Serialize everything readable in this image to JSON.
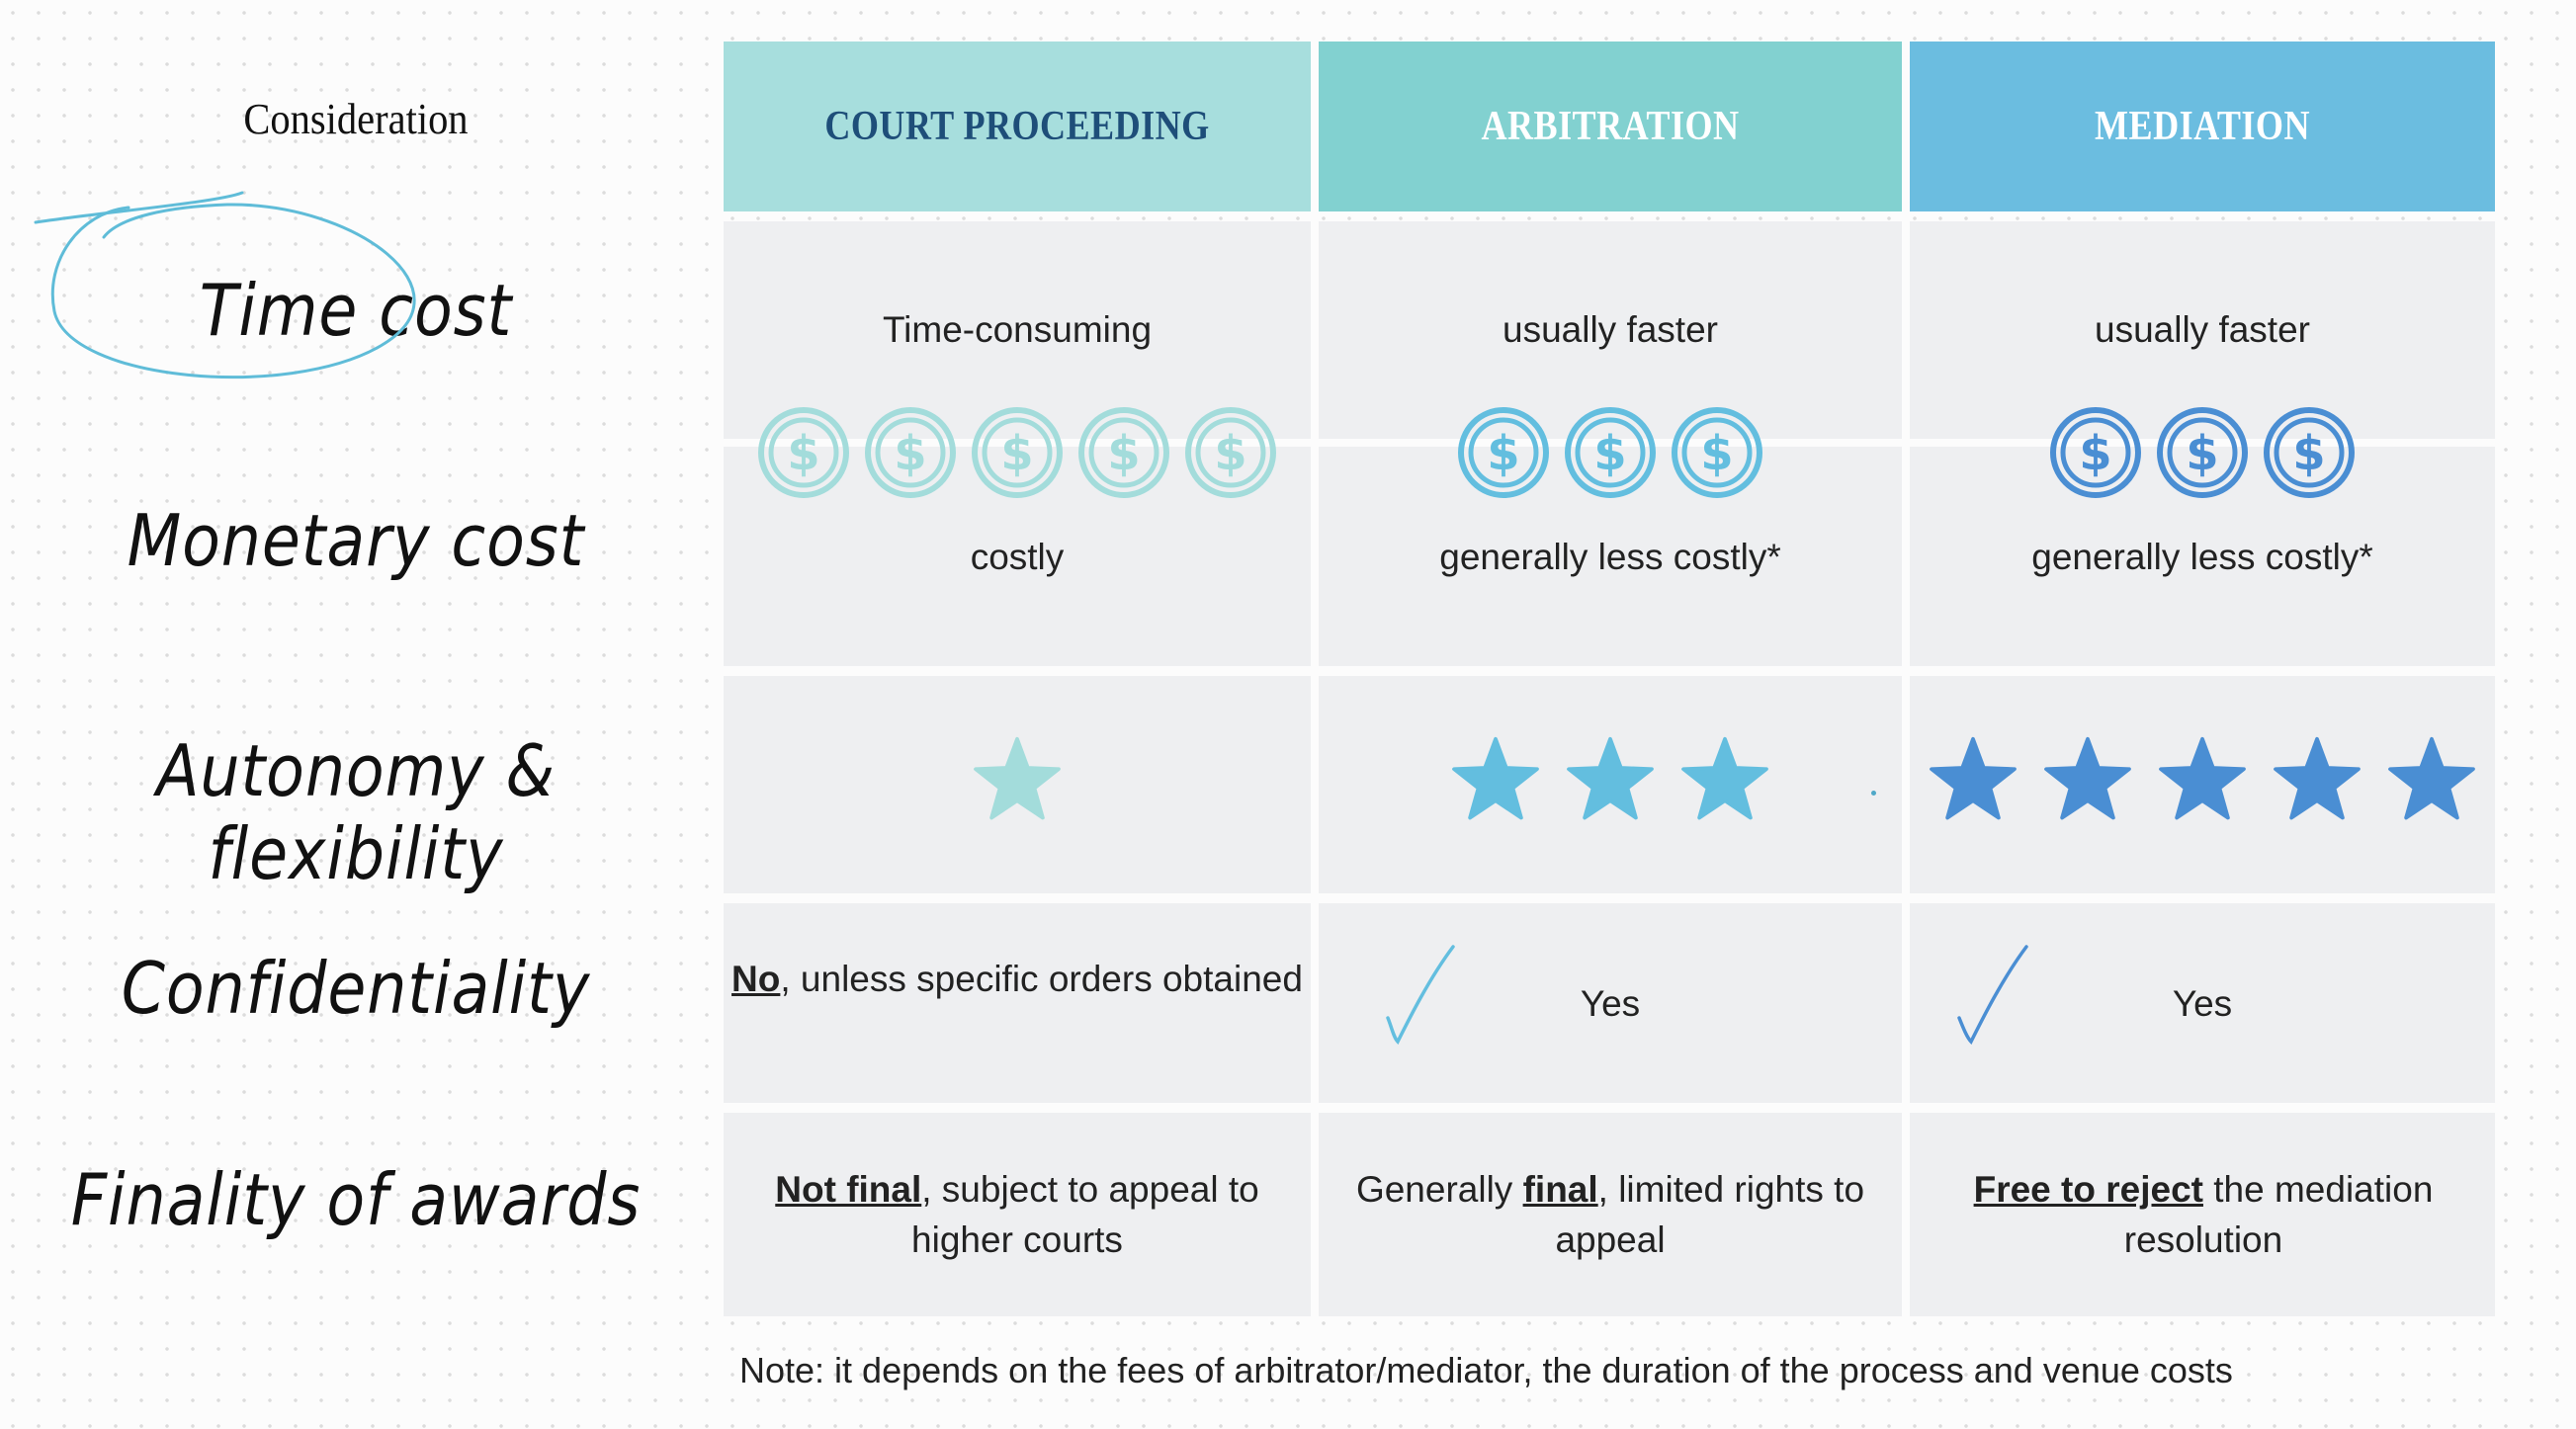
{
  "header": {
    "consideration": "Consideration",
    "columns": [
      "COURT PROCEEDING",
      "ARBITRATION",
      "MEDIATION"
    ]
  },
  "rows": {
    "time_cost": "Time cost",
    "monetary_cost": "Monetary cost",
    "autonomy": "Autonomy & flexibility",
    "confidentiality": "Confidentiality",
    "finality": "Finality of awards"
  },
  "court": {
    "time": "Time-consuming",
    "money": "costly",
    "money_icons": 5,
    "autonomy_stars": 1,
    "conf_bold": "No",
    "conf_rest": ", unless specific orders obtained",
    "final_bold": "Not final",
    "final_rest": ", subject to appeal to higher courts"
  },
  "arbitration": {
    "time": "usually faster",
    "money": "generally less costly*",
    "money_icons": 3,
    "autonomy_stars": 3,
    "conf": "Yes",
    "final_pre": "Generally ",
    "final_bold": "final",
    "final_rest": ", limited rights to appeal"
  },
  "mediation": {
    "time": "usually faster",
    "money": "generally less costly*",
    "money_icons": 3,
    "autonomy_stars": 5,
    "conf": "Yes",
    "final_bold": "Free to reject",
    "final_rest": " the mediation resolution"
  },
  "note": "Note: it depends on the fees of arbitrator/mediator, the duration of the process and venue costs",
  "colors": {
    "court_header": "#a7dedd",
    "arbitration_header": "#82d1d0",
    "mediation_header": "#6bbde0",
    "court_accent": "#a3dcdb",
    "arbitration_accent": "#63bedf",
    "mediation_accent": "#4a8ed3",
    "court_header_text": "#1e4e79",
    "header_text_light": "#ffffff"
  },
  "icons": {
    "money": "dollar-coin-icon",
    "rating": "star-icon",
    "check": "checkmark-icon"
  }
}
